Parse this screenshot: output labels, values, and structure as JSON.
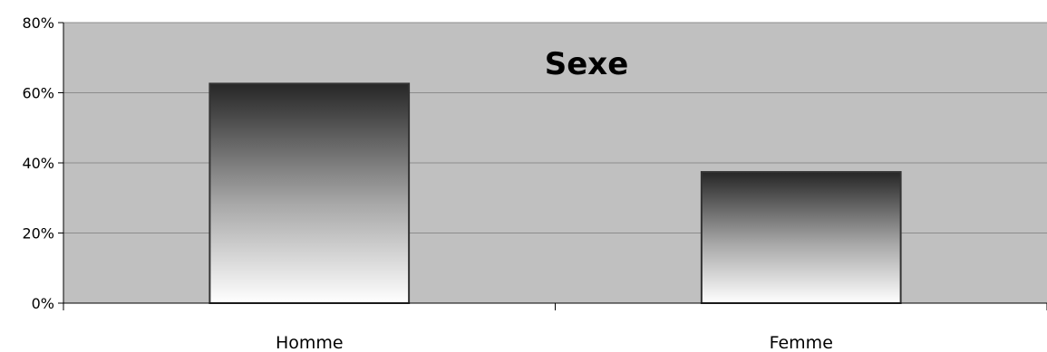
{
  "chart_data": {
    "type": "bar",
    "title": "Sexe",
    "xlabel": "",
    "ylabel": "",
    "categories": [
      "Homme",
      "Femme"
    ],
    "values": [
      62.6,
      37.4
    ],
    "ylim": [
      0,
      80
    ],
    "yticks": [
      0,
      20,
      40,
      60,
      80
    ],
    "ytick_labels": [
      "0%",
      "20%",
      "40%",
      "60%",
      "80%"
    ],
    "grid": true,
    "legend": "none",
    "colors": {
      "plot_background": "#c0c0c0",
      "gridline": "#8c8c8c",
      "bar_top": "#262626",
      "bar_bottom": "#ffffff",
      "bar_border": "#333333"
    }
  }
}
